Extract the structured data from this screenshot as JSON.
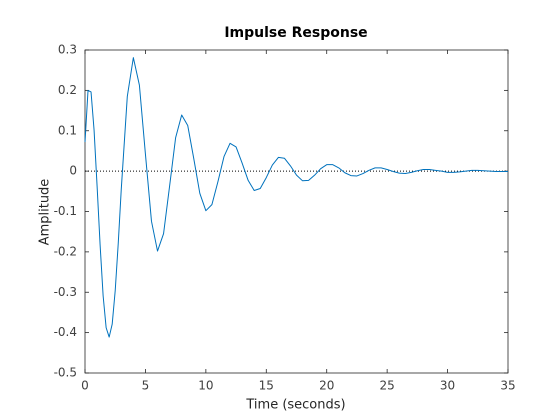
{
  "chart_data": {
    "type": "line",
    "title": "Impulse Response",
    "x_label": "Time (seconds)",
    "y_label": "Amplitude",
    "x": [
      0,
      0.25,
      0.5,
      0.75,
      1,
      1.25,
      1.5,
      1.75,
      2,
      2.25,
      2.5,
      2.75,
      3,
      3.5,
      4,
      4.5,
      5,
      5.5,
      6,
      6.5,
      7,
      7.5,
      8,
      8.5,
      9,
      9.5,
      10,
      10.5,
      11,
      11.5,
      12,
      12.5,
      13,
      13.5,
      14,
      14.5,
      15,
      15.5,
      16,
      16.5,
      17,
      17.5,
      18,
      18.5,
      19,
      19.5,
      20,
      20.5,
      21,
      21.5,
      22,
      22.5,
      23,
      23.5,
      24,
      24.5,
      25,
      25.5,
      26,
      26.5,
      27,
      27.5,
      28,
      28.5,
      29,
      29.5,
      30,
      30.5,
      31,
      31.5,
      32,
      32.5,
      33,
      33.5,
      34,
      34.5,
      35
    ],
    "series": [
      {
        "color": "#0072bd",
        "values": [
          0.072,
          0.2,
          0.196,
          0.102,
          -0.037,
          -0.183,
          -0.309,
          -0.388,
          -0.411,
          -0.379,
          -0.296,
          -0.179,
          -0.045,
          0.185,
          0.281,
          0.213,
          0.042,
          -0.124,
          -0.198,
          -0.155,
          -0.037,
          0.083,
          0.139,
          0.113,
          0.031,
          -0.055,
          -0.098,
          -0.083,
          -0.026,
          0.036,
          0.069,
          0.06,
          0.02,
          -0.023,
          -0.048,
          -0.043,
          -0.016,
          0.015,
          0.034,
          0.032,
          0.013,
          -0.01,
          -0.024,
          -0.023,
          -0.01,
          0.006,
          0.016,
          0.016,
          0.008,
          -0.004,
          -0.011,
          -0.012,
          -0.006,
          0.002,
          0.008,
          0.008,
          0.004,
          -0.001,
          -0.005,
          -0.006,
          -0.003,
          0.001,
          0.004,
          0.004,
          0.002,
          0,
          -0.003,
          -0.003,
          -0.002,
          0,
          0.002,
          0.002,
          0.001,
          0,
          -0.001,
          -0.001,
          -0.001
        ]
      }
    ],
    "reference_line": 0,
    "xlim": [
      0,
      35
    ],
    "xticks": [
      0,
      5,
      10,
      15,
      20,
      25,
      30,
      35
    ],
    "ylim": [
      -0.5,
      0.3
    ],
    "yticks": [
      -0.5,
      -0.4,
      -0.3,
      -0.2,
      -0.1,
      0,
      0.1,
      0.2,
      0.3
    ],
    "grid": false
  }
}
